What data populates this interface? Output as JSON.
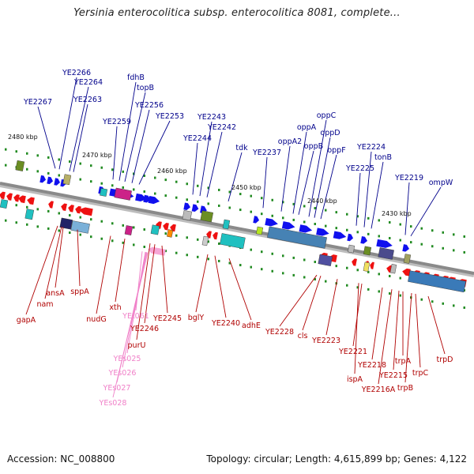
{
  "title": "Yersinia enterocolitica subsp. enterocolitica 8081, complete...",
  "footer": {
    "accession": "Accession: NC_008800",
    "summary": "Topology: circular; Length: 4,615,899 bp; Genes: 4,122"
  },
  "colors": {
    "backbone": "#8a8a8a",
    "top_label": "#00008b",
    "bottom_label": "#b00000",
    "rna_label": "#f080c8",
    "forward_arrow": "#1010ee",
    "reverse_arrow": "#ee1111",
    "tick": "#228b22"
  },
  "scale_labels": [
    "2480 kbp",
    "2470 kbp",
    "2460 kbp",
    "2450 kbp",
    "2440 kbp",
    "2430 kbp"
  ],
  "top_genes": [
    "YE2267",
    "YE2266",
    "YE2264",
    "YE2263",
    "YE2259",
    "fdhB",
    "topB",
    "YE2256",
    "YE2253",
    "YE2244",
    "YE2243",
    "YE2242",
    "tdk",
    "YE2237",
    "oppA2",
    "oppA",
    "oppB",
    "oppC",
    "oppD",
    "oppF",
    "YE2225",
    "YE2224",
    "tonB",
    "YE2219",
    "ompW"
  ],
  "bottom_genes": [
    "gapA",
    "nam",
    "ansA",
    "sppA",
    "nudG",
    "xth",
    "YE2246",
    "YE2245",
    "purU",
    "bglY",
    "YE2240",
    "adhE",
    "YE2228",
    "cls",
    "YE2223",
    "YE2221",
    "ispA",
    "YE2218",
    "YE2216A",
    "YE2215",
    "trpA",
    "trpB",
    "trpC",
    "trpD"
  ],
  "rna_genes": [
    "YEt061",
    "YEs025",
    "YEs026",
    "YEs027",
    "YEs028"
  ]
}
